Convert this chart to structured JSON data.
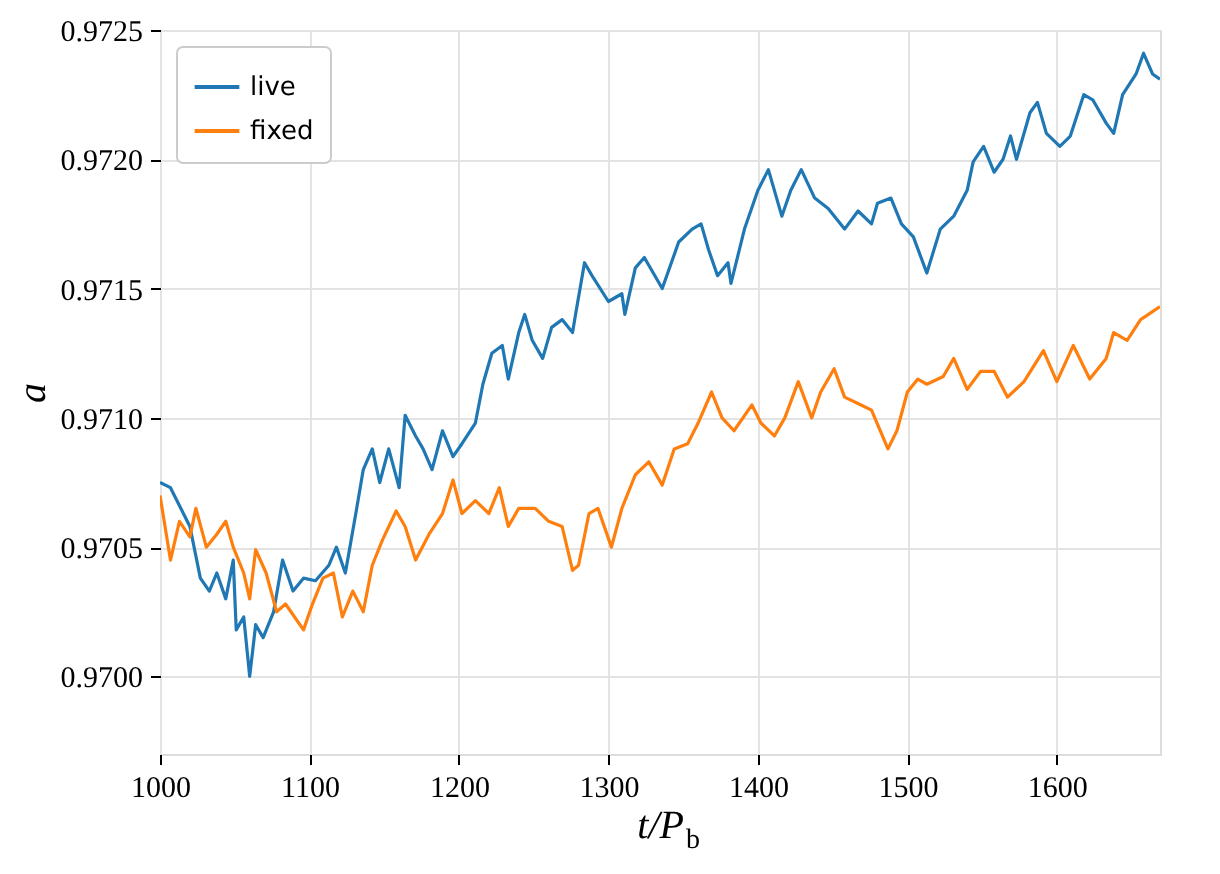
{
  "chart_data": {
    "type": "line",
    "xlabel": "t/P$_{b}$",
    "ylabel": "a",
    "xlim": [
      1000,
      1669
    ],
    "ylim": [
      0.9697,
      0.9725
    ],
    "xticks": [
      1000,
      1100,
      1200,
      1300,
      1400,
      1500,
      1600
    ],
    "yticks": [
      {
        "value": 0.97,
        "label": "0.9700"
      },
      {
        "value": 0.9705,
        "label": "0.9705"
      },
      {
        "value": 0.971,
        "label": "0.9710"
      },
      {
        "value": 0.9715,
        "label": "0.9715"
      },
      {
        "value": 0.972,
        "label": "0.9720"
      },
      {
        "value": 0.9725,
        "label": "0.9725"
      }
    ],
    "grid": true,
    "legend": "top left",
    "line_style": "solid",
    "marker": "none",
    "series": [
      {
        "name": "live",
        "color": "#1f77b4",
        "x": [
          1000,
          1007,
          1020,
          1027,
          1033,
          1038,
          1044,
          1049,
          1051,
          1056,
          1060,
          1064,
          1069,
          1076,
          1082,
          1089,
          1096,
          1104,
          1113,
          1118,
          1124,
          1131,
          1136,
          1142,
          1147,
          1153,
          1160,
          1164,
          1171,
          1176,
          1182,
          1189,
          1196,
          1202,
          1211,
          1216,
          1222,
          1229,
          1233,
          1240,
          1244,
          1249,
          1256,
          1262,
          1269,
          1276,
          1278,
          1284,
          1289,
          1300,
          1309,
          1311,
          1318,
          1324,
          1336,
          1347,
          1356,
          1362,
          1367,
          1373,
          1380,
          1382,
          1391,
          1400,
          1407,
          1416,
          1422,
          1429,
          1438,
          1447,
          1458,
          1467,
          1476,
          1480,
          1489,
          1496,
          1504,
          1513,
          1522,
          1531,
          1540,
          1544,
          1551,
          1558,
          1564,
          1569,
          1573,
          1582,
          1587,
          1593,
          1602,
          1609,
          1618,
          1624,
          1633,
          1638,
          1644,
          1653,
          1658,
          1664,
          1669
        ],
        "values": [
          0.97075,
          0.97073,
          0.97058,
          0.97038,
          0.97033,
          0.9704,
          0.9703,
          0.97045,
          0.97018,
          0.97023,
          0.97,
          0.9702,
          0.97015,
          0.97025,
          0.97045,
          0.97033,
          0.97038,
          0.97037,
          0.97043,
          0.9705,
          0.9704,
          0.97063,
          0.9708,
          0.97088,
          0.97075,
          0.97088,
          0.97073,
          0.97101,
          0.97093,
          0.97088,
          0.9708,
          0.97095,
          0.97085,
          0.9709,
          0.97098,
          0.97113,
          0.97125,
          0.97128,
          0.97115,
          0.97133,
          0.9714,
          0.9713,
          0.97123,
          0.97135,
          0.97138,
          0.97133,
          0.9714,
          0.9716,
          0.97155,
          0.97145,
          0.97148,
          0.9714,
          0.97158,
          0.97162,
          0.9715,
          0.97168,
          0.97173,
          0.97175,
          0.97165,
          0.97155,
          0.9716,
          0.97152,
          0.97173,
          0.97188,
          0.97196,
          0.97178,
          0.97188,
          0.97196,
          0.97185,
          0.97181,
          0.97173,
          0.9718,
          0.97175,
          0.97183,
          0.97185,
          0.97175,
          0.9717,
          0.97156,
          0.97173,
          0.97178,
          0.97188,
          0.97199,
          0.97205,
          0.97195,
          0.972,
          0.97209,
          0.972,
          0.97218,
          0.97222,
          0.9721,
          0.97205,
          0.97209,
          0.97225,
          0.97223,
          0.97214,
          0.9721,
          0.97225,
          0.97233,
          0.97241,
          0.97233,
          0.97231
        ]
      },
      {
        "name": "fixed",
        "color": "#ff7f0e",
        "x": [
          1000,
          1007,
          1013,
          1020,
          1024,
          1031,
          1038,
          1044,
          1049,
          1056,
          1060,
          1064,
          1071,
          1078,
          1084,
          1096,
          1102,
          1109,
          1116,
          1122,
          1129,
          1136,
          1142,
          1149,
          1158,
          1164,
          1171,
          1180,
          1189,
          1196,
          1202,
          1211,
          1220,
          1227,
          1233,
          1240,
          1251,
          1260,
          1269,
          1276,
          1280,
          1287,
          1293,
          1302,
          1309,
          1318,
          1327,
          1336,
          1344,
          1353,
          1360,
          1369,
          1376,
          1384,
          1396,
          1402,
          1411,
          1418,
          1427,
          1436,
          1442,
          1451,
          1458,
          1469,
          1476,
          1487,
          1493,
          1500,
          1507,
          1513,
          1524,
          1531,
          1540,
          1549,
          1558,
          1567,
          1578,
          1591,
          1600,
          1611,
          1622,
          1633,
          1638,
          1647,
          1656,
          1669
        ],
        "values": [
          0.9707,
          0.97045,
          0.9706,
          0.97054,
          0.97065,
          0.9705,
          0.97055,
          0.9706,
          0.9705,
          0.9704,
          0.9703,
          0.97049,
          0.9704,
          0.97025,
          0.97028,
          0.97018,
          0.97028,
          0.97038,
          0.9704,
          0.97023,
          0.97033,
          0.97025,
          0.97043,
          0.97053,
          0.97064,
          0.97058,
          0.97045,
          0.97055,
          0.97063,
          0.97076,
          0.97063,
          0.97068,
          0.97063,
          0.97073,
          0.97058,
          0.97065,
          0.97065,
          0.9706,
          0.97058,
          0.97041,
          0.97043,
          0.97063,
          0.97065,
          0.9705,
          0.97065,
          0.97078,
          0.97083,
          0.97074,
          0.97088,
          0.9709,
          0.97098,
          0.9711,
          0.971,
          0.97095,
          0.97105,
          0.97098,
          0.97093,
          0.971,
          0.97114,
          0.971,
          0.9711,
          0.97119,
          0.97108,
          0.97105,
          0.97103,
          0.97088,
          0.97095,
          0.9711,
          0.97115,
          0.97113,
          0.97116,
          0.97123,
          0.97111,
          0.97118,
          0.97118,
          0.97108,
          0.97114,
          0.97126,
          0.97114,
          0.97128,
          0.97115,
          0.97123,
          0.97133,
          0.9713,
          0.97138,
          0.97143
        ]
      }
    ]
  }
}
